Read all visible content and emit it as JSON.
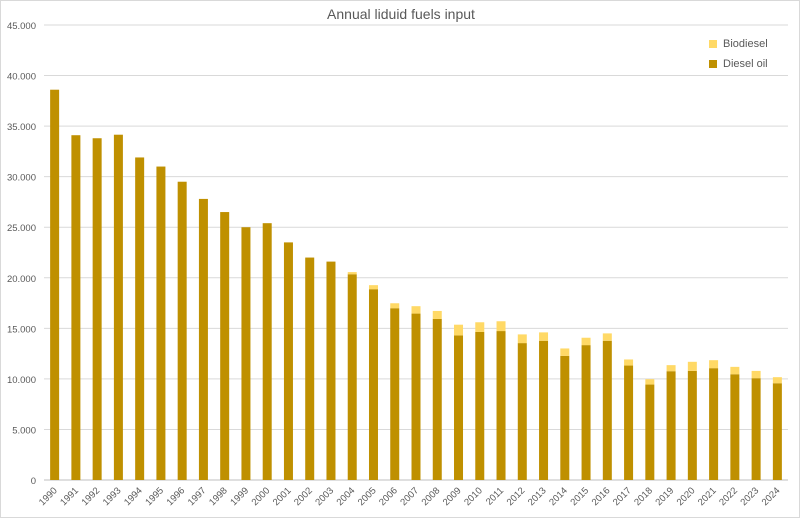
{
  "chart_data": {
    "type": "bar",
    "stacked": true,
    "title": "Annual liduid fuels input",
    "xlabel": "",
    "ylabel": "",
    "ylim": [
      0,
      45000
    ],
    "yticks": [
      "0",
      "5.000",
      "10.000",
      "15.000",
      "20.000",
      "25.000",
      "30.000",
      "35.000",
      "40.000",
      "45.000"
    ],
    "grid": true,
    "legend_position": "top-right",
    "categories": [
      "1990",
      "1991",
      "1992",
      "1993",
      "1994",
      "1995",
      "1996",
      "1997",
      "1998",
      "1999",
      "2000",
      "2001",
      "2002",
      "2003",
      "2004",
      "2005",
      "2006",
      "2007",
      "2008",
      "2009",
      "2010",
      "2011",
      "2012",
      "2013",
      "2014",
      "2015",
      "2016",
      "2017",
      "2018",
      "2019",
      "2020",
      "2021",
      "2022",
      "2023",
      "2024"
    ],
    "series": [
      {
        "name": "Diesel oil",
        "color": "#bf9000",
        "values": [
          38600,
          34100,
          33800,
          34150,
          31900,
          31000,
          29500,
          27800,
          26500,
          25000,
          25400,
          23500,
          22000,
          21600,
          20350,
          18870,
          16990,
          16460,
          15930,
          14300,
          14640,
          14730,
          13540,
          13770,
          12280,
          13340,
          13770,
          11320,
          9440,
          10760,
          10790,
          11060,
          10460,
          10070,
          9570
        ]
      },
      {
        "name": "Biodiesel",
        "color": "#ffd966",
        "values": [
          0,
          0,
          0,
          0,
          0,
          0,
          0,
          0,
          0,
          0,
          0,
          0,
          0,
          0,
          210,
          400,
          490,
          730,
          790,
          1060,
          960,
          970,
          860,
          830,
          730,
          730,
          730,
          600,
          530,
          600,
          900,
          790,
          730,
          720,
          600
        ]
      }
    ]
  }
}
